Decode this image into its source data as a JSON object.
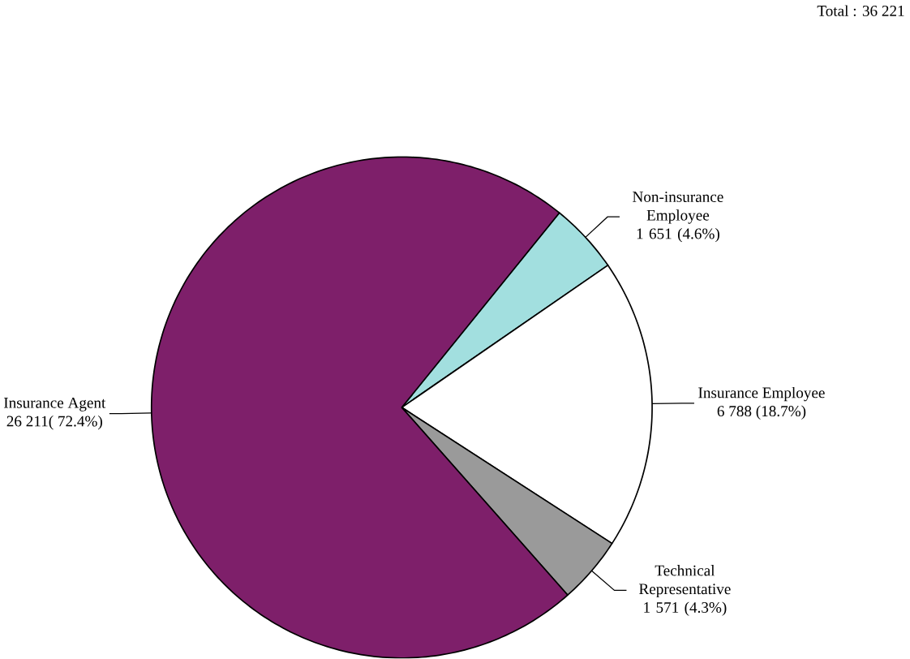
{
  "chart_data": {
    "type": "pie",
    "categories": [
      "Non-insurance Employee",
      "Insurance Employee",
      "Technical Representative",
      "Insurance Agent"
    ],
    "values": [
      1651,
      6788,
      1571,
      26211
    ],
    "value_labels": [
      "1 651 (4.6%)",
      "6 788 (18.7%)",
      "1 571 (4.3%)",
      "26 211( 72.4%)"
    ],
    "colors": [
      "#a2dfdf",
      "#ffffff",
      "#9a9a9a",
      "#7e1f6a"
    ],
    "annotations": [
      "Total : 36 221"
    ]
  }
}
